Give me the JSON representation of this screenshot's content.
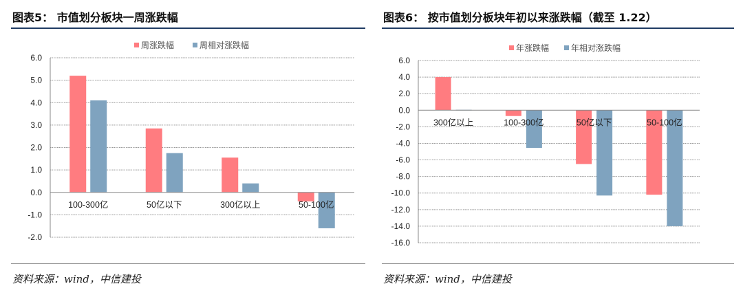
{
  "chart_data": [
    {
      "type": "bar",
      "title": "图表5： 市值划分板块一周涨跌幅",
      "categories": [
        "100-300亿",
        "50亿以下",
        "300亿以上",
        "50-100亿"
      ],
      "series": [
        {
          "name": "周涨跌幅",
          "color": "#ff7c80",
          "values": [
            5.2,
            2.85,
            1.55,
            -0.4
          ]
        },
        {
          "name": "周相对涨跌幅",
          "color": "#7fa3bf",
          "values": [
            4.1,
            1.75,
            0.4,
            -1.6
          ]
        }
      ],
      "ylim": [
        -2,
        6
      ],
      "yticks": [
        "6.0",
        "5.0",
        "4.0",
        "3.0",
        "2.0",
        "1.0",
        "0.0",
        "-1.0",
        "-2.0"
      ],
      "legend": "top",
      "grid": true,
      "source": "资料来源：wind，中信建投"
    },
    {
      "type": "bar",
      "title": "图表6： 按市值划分板块年初以来涨跌幅（截至 1.22）",
      "categories": [
        "300亿以上",
        "100-300亿",
        "50亿以下",
        "50-100亿"
      ],
      "series": [
        {
          "name": "年涨跌幅",
          "color": "#ff7c80",
          "values": [
            4.0,
            -0.7,
            -6.5,
            -10.2
          ]
        },
        {
          "name": "年相对涨跌幅",
          "color": "#7fa3bf",
          "values": [
            0.05,
            -4.55,
            -10.3,
            -14.0
          ]
        }
      ],
      "ylim": [
        -16,
        6
      ],
      "yticks": [
        "6.0",
        "4.0",
        "2.0",
        "0.0",
        "-2.0",
        "-4.0",
        "-6.0",
        "-8.0",
        "-10.0",
        "-12.0",
        "-14.0",
        "-16.0"
      ],
      "legend": "top",
      "grid": true,
      "source": "资料来源：wind，中信建投"
    }
  ]
}
